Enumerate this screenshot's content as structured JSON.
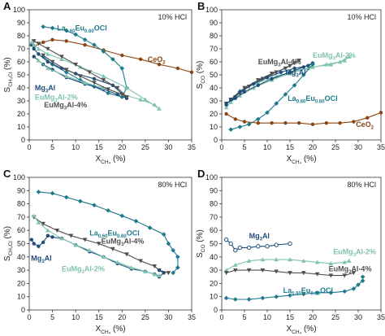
{
  "colors": {
    "La0.60Eu0.60OCl": "#1d7a8c",
    "Mg3Al": "#1f4e79",
    "EuMg3Al-2%": "#7fc3b0",
    "EuMg3Al-4%": "#505050",
    "CeO2": "#8b4513"
  },
  "chart_data": [
    {
      "panel": "A",
      "type": "line",
      "condition": "10% HCl",
      "xlabel": "X",
      "xlabel_sub": "CH₄",
      "xlabel_unit": " (%)",
      "ylabel": "S",
      "ylabel_sub": "CH₃Cl",
      "ylabel_unit": " (%)",
      "xlim": [
        0,
        35
      ],
      "ylim": [
        0,
        100
      ],
      "xticks": [
        "0",
        "5",
        "10",
        "15",
        "20",
        "25",
        "30",
        "35"
      ],
      "yticks": [
        "0",
        "10",
        "20",
        "30",
        "40",
        "50",
        "60",
        "70",
        "80",
        "90",
        "100"
      ],
      "series": [
        {
          "key": "CeO2",
          "marker": "circle",
          "x": [
            1,
            3,
            5,
            8,
            12,
            16,
            20,
            24,
            28,
            32,
            35
          ],
          "y": [
            72,
            75,
            77,
            76,
            73,
            69,
            65,
            62,
            58,
            55,
            52
          ]
        },
        {
          "key": "La0.60Eu0.60OCl",
          "marker": "diamond",
          "x": [
            3,
            5,
            8,
            10,
            12,
            14,
            16,
            18,
            20,
            21,
            20,
            17,
            14,
            11,
            8,
            5,
            3
          ],
          "y": [
            87,
            86,
            84,
            81,
            77,
            73,
            68,
            62,
            55,
            40,
            33,
            36,
            41,
            46,
            52,
            58,
            64
          ]
        },
        {
          "key": "Mg3Al",
          "marker": "circle",
          "x": [
            0.5,
            1,
            2,
            4,
            7,
            10,
            14,
            18,
            21,
            19,
            16,
            12,
            8,
            5,
            3,
            1
          ],
          "y": [
            73,
            70,
            66,
            60,
            55,
            51,
            47,
            42,
            32,
            35,
            39,
            43,
            48,
            54,
            58,
            64
          ]
        },
        {
          "key": "EuMg3Al-2%",
          "marker": "triangle",
          "x": [
            0.5,
            1,
            2,
            4,
            7,
            11,
            16,
            21,
            25,
            28,
            27,
            24,
            20,
            16,
            12,
            8,
            4,
            2
          ],
          "y": [
            75,
            73,
            70,
            66,
            62,
            56,
            49,
            40,
            31,
            24,
            27,
            31,
            35,
            40,
            44,
            49,
            55,
            61
          ]
        },
        {
          "key": "EuMg3Al-4%",
          "marker": "triangle-down",
          "x": [
            1,
            2,
            4,
            7,
            10,
            13,
            16,
            19,
            21,
            20,
            17,
            14,
            11,
            8,
            5,
            3
          ],
          "y": [
            76,
            74,
            70,
            64,
            58,
            52,
            46,
            40,
            33,
            35,
            39,
            44,
            49,
            54,
            60,
            65
          ]
        }
      ],
      "labels": [
        {
          "key": "La0.60Eu0.60OCl",
          "main": "La",
          "sub1": "0.60",
          "mid": "Eu",
          "sub2": "0.60",
          "end": "OCl"
        },
        {
          "key": "CeO2",
          "main": "CeO",
          "sub1": "2"
        },
        {
          "key": "Mg3Al",
          "main": "Mg",
          "sub1": "3",
          "end": "Al"
        },
        {
          "key": "EuMg3Al-2%",
          "main": "EuMg",
          "sub1": "3",
          "end": "Al-2%"
        },
        {
          "key": "EuMg3Al-4%",
          "main": "EuMg",
          "sub1": "3",
          "end": "Al-4%"
        }
      ]
    },
    {
      "panel": "B",
      "type": "line",
      "condition": "10% HCl",
      "xlabel": "X",
      "xlabel_sub": "CH₄",
      "xlabel_unit": " (%)",
      "ylabel": "S",
      "ylabel_sub": "CO",
      "ylabel_unit": " (%)",
      "xlim": [
        0,
        35
      ],
      "ylim": [
        0,
        100
      ],
      "xticks": [
        "0",
        "5",
        "10",
        "15",
        "20",
        "25",
        "30",
        "35"
      ],
      "yticks": [
        "0",
        "10",
        "20",
        "30",
        "40",
        "50",
        "60",
        "70",
        "80",
        "90",
        "100"
      ],
      "series": [
        {
          "key": "EuMg3Al-2%",
          "marker": "triangle",
          "x": [
            1,
            2,
            4,
            7,
            11,
            15,
            19,
            23,
            26,
            28,
            27,
            24,
            20,
            16,
            12,
            8,
            4,
            2
          ],
          "y": [
            25,
            29,
            34,
            40,
            46,
            51,
            55,
            58,
            60,
            64,
            61,
            58,
            56,
            53,
            49,
            44,
            38,
            31
          ]
        },
        {
          "key": "EuMg3Al-4%",
          "marker": "triangle-down",
          "x": [
            1,
            3,
            5,
            8,
            11,
            14,
            16,
            17,
            15,
            12,
            9,
            6,
            4,
            2
          ],
          "y": [
            28,
            33,
            40,
            46,
            51,
            55,
            59,
            61,
            57,
            52,
            47,
            41,
            36,
            31
          ]
        },
        {
          "key": "Mg3Al",
          "marker": "circle",
          "x": [
            1,
            2,
            4,
            7,
            10,
            13,
            16,
            19,
            20,
            18,
            15,
            11,
            8,
            5,
            3,
            1
          ],
          "y": [
            27,
            31,
            37,
            43,
            48,
            52,
            55,
            57,
            59,
            56,
            52,
            47,
            42,
            37,
            32,
            28
          ]
        },
        {
          "key": "La0.60Eu0.60OCl",
          "marker": "diamond",
          "x": [
            2,
            4,
            6,
            8,
            10,
            12,
            14,
            16,
            18,
            20
          ],
          "y": [
            8,
            10,
            12,
            16,
            21,
            28,
            35,
            42,
            50,
            58
          ]
        },
        {
          "key": "CeO2",
          "marker": "circle",
          "x": [
            1,
            3,
            5,
            8,
            11,
            14,
            17,
            20,
            23,
            26,
            29,
            32,
            35
          ],
          "y": [
            20,
            16,
            14,
            13,
            13,
            13,
            13,
            12,
            13,
            13,
            14,
            17,
            21
          ]
        }
      ],
      "labels": [
        {
          "key": "EuMg3Al-2%",
          "main": "EuMg",
          "sub1": "3",
          "end": "Al-2%"
        },
        {
          "key": "EuMg3Al-4%",
          "main": "EuMg",
          "sub1": "3",
          "end": "Al-4%"
        },
        {
          "key": "Mg3Al",
          "main": "Mg",
          "sub1": "3",
          "end": "Al"
        },
        {
          "key": "La0.60Eu0.60OCl",
          "main": "La",
          "sub1": "0.60",
          "mid": "Eu",
          "sub2": "0.60",
          "end": "OCl"
        },
        {
          "key": "CeO2",
          "main": "CeO",
          "sub1": "2"
        }
      ]
    },
    {
      "panel": "C",
      "type": "line",
      "condition": "80% HCl",
      "xlabel": "X",
      "xlabel_sub": "CH₄",
      "xlabel_unit": " (%)",
      "ylabel": "S",
      "ylabel_sub": "CH₃Cl",
      "ylabel_unit": " (%)",
      "xlim": [
        0,
        35
      ],
      "ylim": [
        0,
        100
      ],
      "xticks": [
        "0",
        "5",
        "10",
        "15",
        "20",
        "25",
        "30",
        "35"
      ],
      "yticks": [
        "0",
        "10",
        "20",
        "30",
        "40",
        "50",
        "60",
        "70",
        "80",
        "90",
        "100"
      ],
      "series": [
        {
          "key": "La0.60Eu0.60OCl",
          "marker": "diamond",
          "x": [
            2,
            5,
            8,
            11,
            14,
            17,
            20,
            23,
            26,
            29,
            30,
            31,
            32,
            32,
            31
          ],
          "y": [
            89,
            88,
            85,
            82,
            79,
            75,
            71,
            67,
            62,
            57,
            50,
            45,
            40,
            32,
            28
          ]
        },
        {
          "key": "EuMg3Al-4%",
          "marker": "triangle-down",
          "x": [
            1,
            3,
            6,
            9,
            12,
            15,
            18,
            21,
            24,
            27,
            28,
            30
          ],
          "y": [
            70,
            65,
            60,
            56,
            53,
            50,
            46,
            42,
            37,
            33,
            30,
            28
          ]
        },
        {
          "key": "Mg3Al",
          "marker": "circle",
          "x": [
            0.5,
            1,
            2,
            3,
            4,
            5,
            7,
            10,
            13,
            16,
            19,
            22,
            25,
            27,
            28,
            29,
            28
          ],
          "y": [
            53,
            50,
            48,
            51,
            56,
            55,
            54,
            49,
            44,
            40,
            35,
            31,
            29,
            27,
            25,
            28,
            30
          ]
        },
        {
          "key": "EuMg3Al-2%",
          "marker": "triangle",
          "x": [
            1,
            2,
            4,
            7,
            10,
            13,
            16,
            19,
            22,
            25,
            27,
            28
          ],
          "y": [
            71,
            66,
            60,
            54,
            49,
            45,
            40,
            36,
            32,
            29,
            27,
            26
          ]
        }
      ],
      "labels": [
        {
          "key": "La0.60Eu0.60OCl",
          "main": "La",
          "sub1": "0.60",
          "mid": "Eu",
          "sub2": "0.60",
          "end": "OCl"
        },
        {
          "key": "EuMg3Al-4%",
          "main": "EuMg",
          "sub1": "3",
          "end": "Al-4%"
        },
        {
          "key": "Mg3Al",
          "main": "Mg",
          "sub1": "3",
          "end": "Al"
        },
        {
          "key": "EuMg3Al-2%",
          "main": "EuMg",
          "sub1": "3",
          "end": "Al-2%"
        }
      ]
    },
    {
      "panel": "D",
      "type": "line",
      "condition": "80% HCl",
      "xlabel": "X",
      "xlabel_sub": "CH₄",
      "xlabel_unit": " (%)",
      "ylabel": "S",
      "ylabel_sub": "CO",
      "ylabel_unit": " (%)",
      "xlim": [
        0,
        35
      ],
      "ylim": [
        0,
        100
      ],
      "xticks": [
        "0",
        "5",
        "10",
        "15",
        "20",
        "25",
        "30",
        "35"
      ],
      "yticks": [
        "0",
        "10",
        "20",
        "30",
        "40",
        "50",
        "60",
        "70",
        "80",
        "90",
        "100"
      ],
      "series": [
        {
          "key": "Mg3Al",
          "marker": "circle-open",
          "x": [
            1,
            2,
            3,
            4,
            6,
            8,
            10,
            12,
            15
          ],
          "y": [
            53,
            50,
            45,
            47,
            47,
            48,
            48,
            49,
            50
          ]
        },
        {
          "key": "EuMg3Al-2%",
          "marker": "triangle",
          "x": [
            1,
            3,
            6,
            9,
            12,
            15,
            18,
            21,
            24,
            27,
            28
          ],
          "y": [
            30,
            34,
            37,
            38,
            38,
            38,
            37,
            36,
            35,
            36,
            37
          ]
        },
        {
          "key": "EuMg3Al-4%",
          "marker": "triangle-down",
          "x": [
            1,
            3,
            6,
            9,
            12,
            15,
            18,
            21,
            24,
            27,
            29
          ],
          "y": [
            28,
            30,
            30,
            30,
            29,
            28,
            28,
            27,
            26,
            26,
            28
          ]
        },
        {
          "key": "La0.60Eu0.60OCl",
          "marker": "diamond",
          "x": [
            1,
            3,
            6,
            9,
            12,
            15,
            18,
            21,
            24,
            27,
            29,
            30,
            31,
            31
          ],
          "y": [
            9,
            8,
            8,
            9,
            10,
            11,
            12,
            13,
            13,
            14,
            16,
            19,
            22,
            25
          ]
        }
      ],
      "labels": [
        {
          "key": "Mg3Al",
          "main": "Mg",
          "sub1": "3",
          "end": "Al"
        },
        {
          "key": "EuMg3Al-2%",
          "main": "EuMg",
          "sub1": "3",
          "end": "Al-2%"
        },
        {
          "key": "EuMg3Al-4%",
          "main": "EuMg",
          "sub1": "3",
          "end": "Al-4%"
        },
        {
          "key": "La0.60Eu0.60OCl",
          "main": "La",
          "sub1": "0.60",
          "mid": "Eu",
          "sub2": "0.60",
          "end": "OCl"
        }
      ]
    }
  ]
}
